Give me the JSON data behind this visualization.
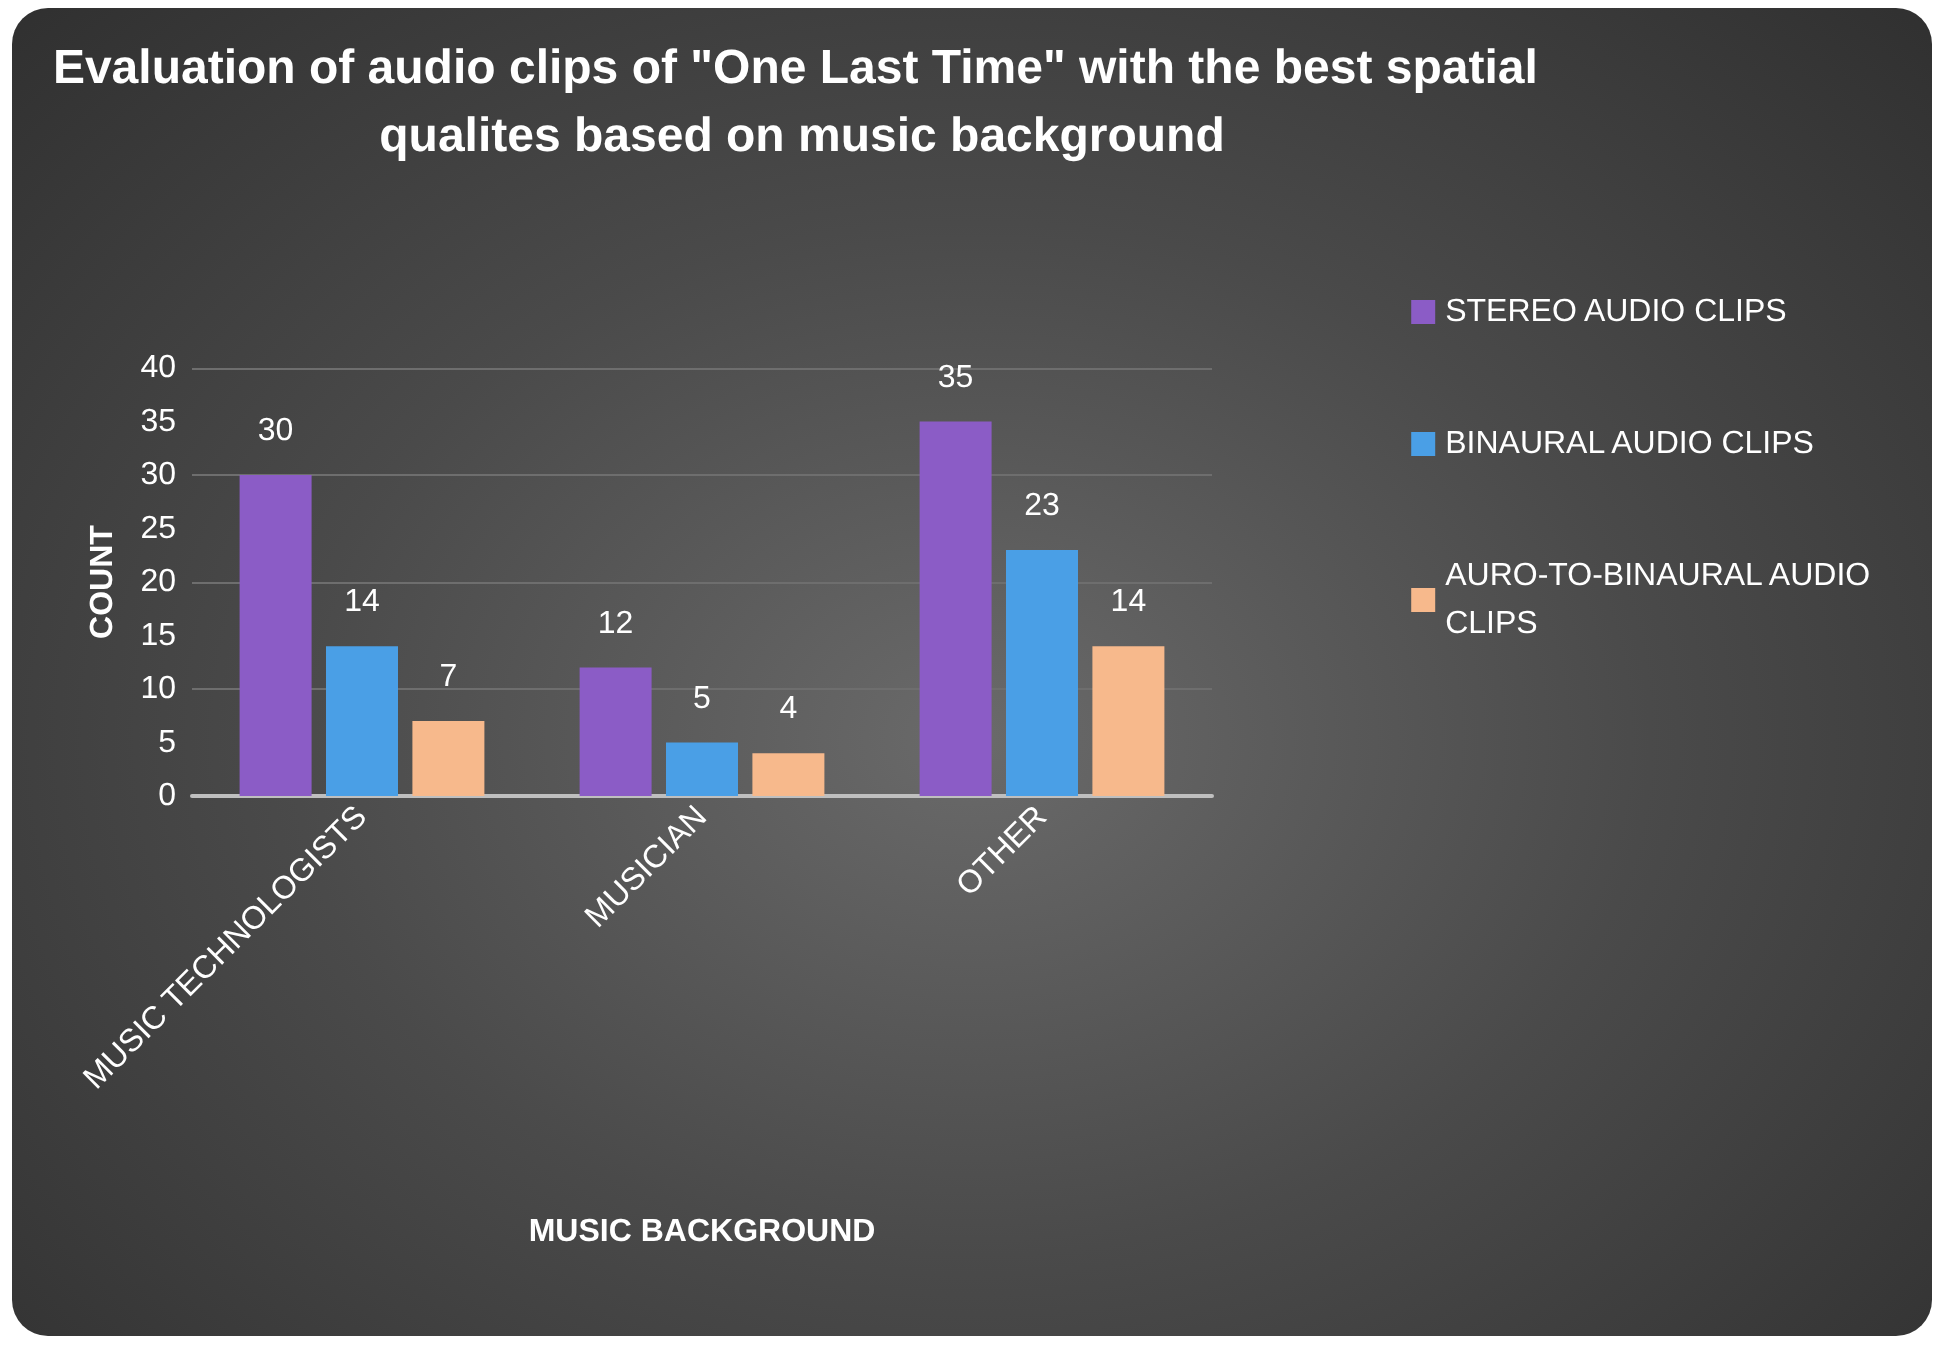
{
  "chart_data": {
    "type": "bar",
    "title": "Evaluation of audio clips of \"One Last Time\" with the best spatial qualites based on music background",
    "xlabel": "MUSIC BACKGROUND",
    "ylabel": "COUNT",
    "categories": [
      "MUSIC TECHNOLOGISTS",
      "MUSICIAN",
      "OTHER"
    ],
    "series": [
      {
        "name": "STEREO AUDIO CLIPS",
        "color": "#8b5cc6",
        "values": [
          30,
          12,
          35
        ]
      },
      {
        "name": "BINAURAL AUDIO CLIPS",
        "color": "#4a9fe6",
        "values": [
          14,
          5,
          23
        ]
      },
      {
        "name": "AURO-TO-BINAURAL AUDIO CLIPS",
        "color": "#f7b98c",
        "values": [
          7,
          4,
          14
        ]
      }
    ],
    "ylim": [
      0,
      40
    ],
    "yticks": [
      0,
      5,
      10,
      15,
      20,
      25,
      30,
      35,
      40
    ],
    "grid": "y",
    "legend": "right",
    "data_labels": true
  }
}
